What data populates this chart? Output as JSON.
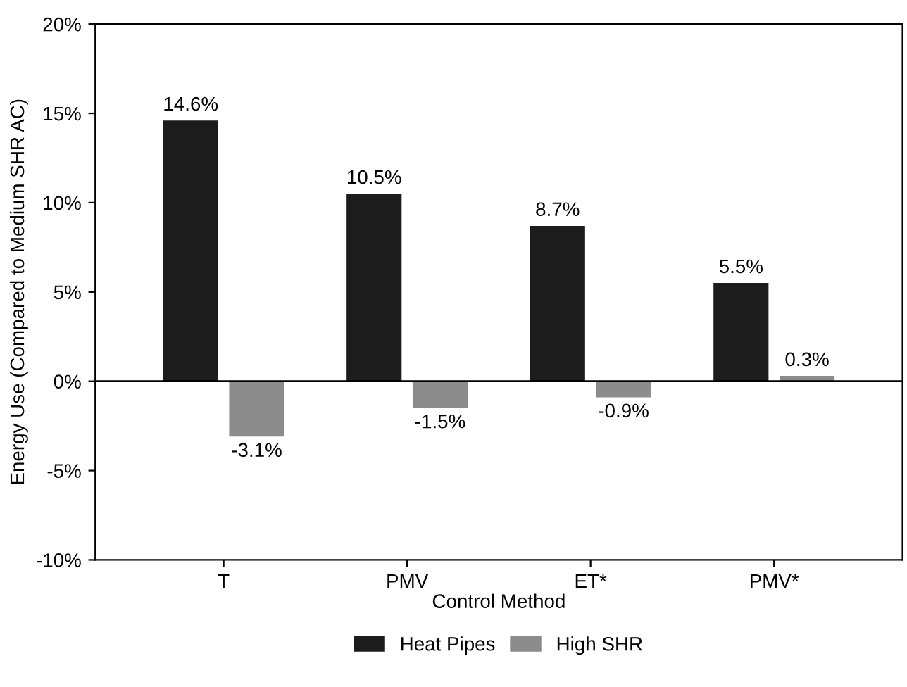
{
  "chart_data": {
    "type": "bar",
    "xlabel": "Control Method",
    "ylabel": "Energy Use (Compared to Medium SHR AC)",
    "categories": [
      "T",
      "PMV",
      "ET*",
      "PMV*"
    ],
    "series": [
      {
        "name": "Heat Pipes",
        "color": "#1c1c1c",
        "values": [
          14.6,
          10.5,
          8.7,
          5.5
        ],
        "value_labels": [
          "14.6%",
          "10.5%",
          "8.7%",
          "5.5%"
        ]
      },
      {
        "name": "High SHR",
        "color": "#8c8c8c",
        "values": [
          -3.1,
          -1.5,
          -0.9,
          0.3
        ],
        "value_labels": [
          "-3.1%",
          "-1.5%",
          "-0.9%",
          "0.3%"
        ]
      }
    ],
    "ylim": [
      -10,
      20
    ],
    "yticks": [
      {
        "value": -10,
        "label": "-10%"
      },
      {
        "value": -5,
        "label": "-5%"
      },
      {
        "value": 0,
        "label": "0%"
      },
      {
        "value": 5,
        "label": "5%"
      },
      {
        "value": 10,
        "label": "10%"
      },
      {
        "value": 15,
        "label": "15%"
      },
      {
        "value": 20,
        "label": "20%"
      }
    ],
    "ref_lines": [
      {
        "axis": "y",
        "value": 0
      }
    ],
    "legend": "bottom",
    "grid": false
  }
}
